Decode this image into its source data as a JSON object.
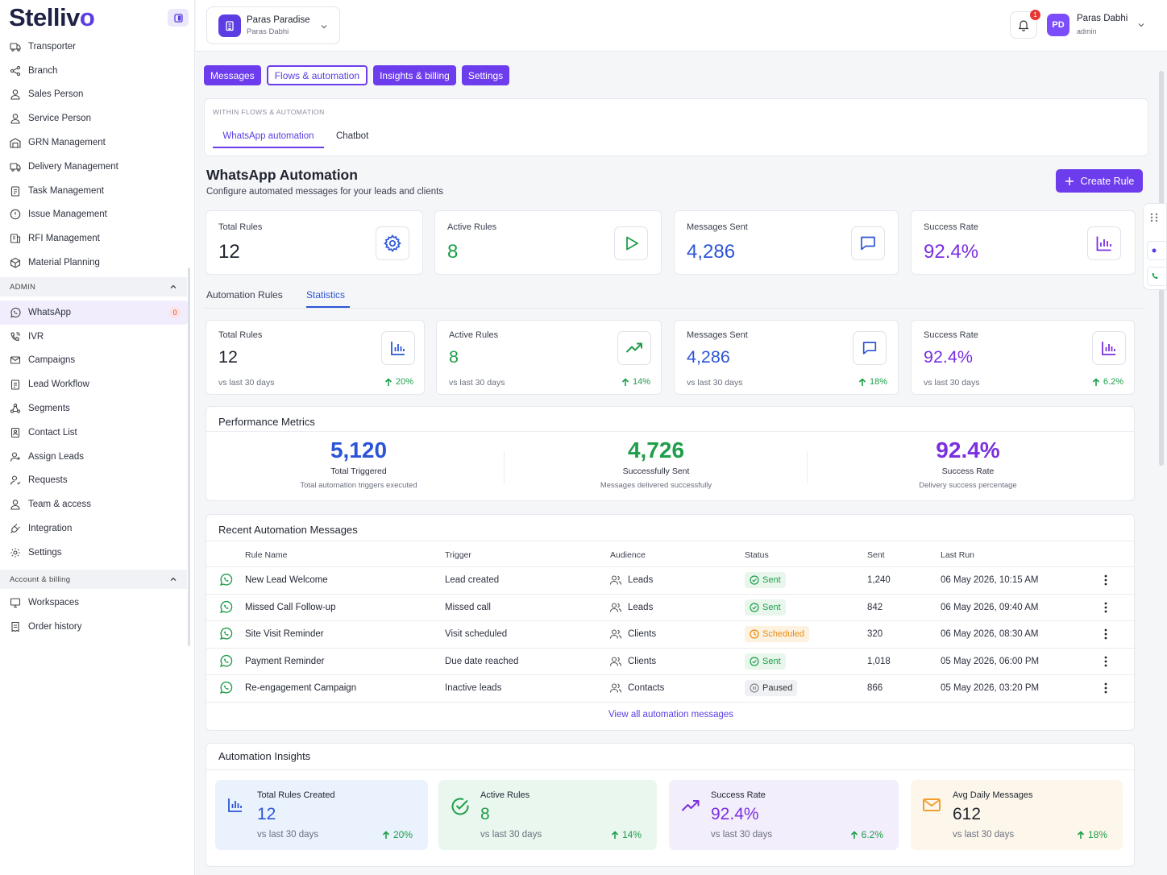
{
  "brand": {
    "name_a": "Stelliv",
    "name_b": "o"
  },
  "sidebar": {
    "items_top": [
      {
        "label": "Transporter"
      },
      {
        "label": "Branch"
      },
      {
        "label": "Sales Person"
      },
      {
        "label": "Service Person"
      },
      {
        "label": "GRN Management"
      },
      {
        "label": "Delivery Management"
      },
      {
        "label": "Task Management"
      },
      {
        "label": "Issue Management"
      },
      {
        "label": "RFI Management"
      },
      {
        "label": "Material Planning"
      }
    ],
    "admin_label": "ADMIN",
    "items_admin": [
      {
        "label": "WhatsApp",
        "badge": "0"
      },
      {
        "label": "IVR"
      },
      {
        "label": "Campaigns"
      },
      {
        "label": "Lead Workflow"
      },
      {
        "label": "Segments"
      },
      {
        "label": "Contact List"
      },
      {
        "label": "Assign Leads"
      },
      {
        "label": "Requests"
      },
      {
        "label": "Team & access"
      },
      {
        "label": "Integration"
      },
      {
        "label": "Settings"
      }
    ],
    "billing_label": "Account & billing",
    "items_billing": [
      {
        "label": "Workspaces"
      },
      {
        "label": "Order history"
      }
    ]
  },
  "topbar": {
    "project_name": "Paras Paradise",
    "project_sub": "Paras Dabhi",
    "notif_count": "1",
    "avatar": "PD",
    "user_name": "Paras Dabhi",
    "user_role": "admin"
  },
  "tabs": [
    "Messages",
    "Flows & automation",
    "Insights & billing",
    "Settings"
  ],
  "subnav": {
    "caption": "WITHIN FLOWS & AUTOMATION",
    "tabs": [
      "WhatsApp automation",
      "Chatbot"
    ]
  },
  "page": {
    "title": "WhatsApp Automation",
    "subtitle": "Configure automated messages for your leads and clients",
    "create_label": "Create Rule"
  },
  "kpis": [
    {
      "label": "Total Rules",
      "value": "12",
      "color": "#1f2430"
    },
    {
      "label": "Active Rules",
      "value": "8",
      "color": "#1e9e4a"
    },
    {
      "label": "Messages Sent",
      "value": "4,286",
      "color": "#2c55d6"
    },
    {
      "label": "Success Rate",
      "value": "92.4%",
      "color": "#7b2fe0"
    }
  ],
  "section_tabs": [
    "Automation Rules",
    "Statistics"
  ],
  "stats": [
    {
      "label": "Total Rules",
      "value": "12",
      "foot": "vs last 30 days",
      "change": "20%",
      "color": "#1f2430"
    },
    {
      "label": "Active Rules",
      "value": "8",
      "foot": "vs last 30 days",
      "change": "14%",
      "color": "#1e9e4a"
    },
    {
      "label": "Messages Sent",
      "value": "4,286",
      "foot": "vs last 30 days",
      "change": "18%",
      "color": "#2c55d6"
    },
    {
      "label": "Success Rate",
      "value": "92.4%",
      "foot": "vs last 30 days",
      "change": "6.2%",
      "color": "#7b2fe0"
    }
  ],
  "performance": {
    "title": "Performance Metrics",
    "cols": [
      {
        "value": "5,120",
        "label": "Total Triggered",
        "sub": "Total automation triggers executed",
        "color": "#2c55d6"
      },
      {
        "value": "4,726",
        "label": "Successfully Sent",
        "sub": "Messages delivered successfully",
        "color": "#1e9e4a"
      },
      {
        "value": "92.4%",
        "label": "Success Rate",
        "sub": "Delivery success percentage",
        "color": "#7b2fe0"
      }
    ]
  },
  "recent": {
    "title": "Recent Automation Messages",
    "headers": [
      "Rule Name",
      "Trigger",
      "Audience",
      "Status",
      "Sent",
      "Last Run"
    ],
    "rows": [
      {
        "name": "New Lead Welcome",
        "trigger": "Lead created",
        "audience": "Leads",
        "status": "Sent",
        "sent": "1,240",
        "last": "06 May 2026, 10:15 AM"
      },
      {
        "name": "Missed Call Follow-up",
        "trigger": "Missed call",
        "audience": "Leads",
        "status": "Sent",
        "sent": "842",
        "last": "06 May 2026, 09:40 AM"
      },
      {
        "name": "Site Visit Reminder",
        "trigger": "Visit scheduled",
        "audience": "Clients",
        "status": "Scheduled",
        "sent": "320",
        "last": "06 May 2026, 08:30 AM"
      },
      {
        "name": "Payment Reminder",
        "trigger": "Due date reached",
        "audience": "Clients",
        "status": "Sent",
        "sent": "1,018",
        "last": "05 May 2026, 06:00 PM"
      },
      {
        "name": "Re-engagement Campaign",
        "trigger": "Inactive leads",
        "audience": "Contacts",
        "status": "Paused",
        "sent": "866",
        "last": "05 May 2026, 03:20 PM"
      }
    ],
    "view_all": "View all automation messages"
  },
  "insights": {
    "title": "Automation Insights",
    "cards": [
      {
        "label": "Total Rules Created",
        "value": "12",
        "foot": "vs last 30 days",
        "change": "20%",
        "color": "#2c55d6",
        "bg": "#eaf2fd"
      },
      {
        "label": "Active Rules",
        "value": "8",
        "foot": "vs last 30 days",
        "change": "14%",
        "color": "#1e9e4a",
        "bg": "#eaf7ee"
      },
      {
        "label": "Success Rate",
        "value": "92.4%",
        "foot": "vs last 30 days",
        "change": "6.2%",
        "color": "#7b2fe0",
        "bg": "#f3eefc"
      },
      {
        "label": "Avg Daily Messages",
        "value": "612",
        "foot": "vs last 30 days",
        "change": "18%",
        "color": "#1f2430",
        "bg": "#fdf6ea"
      }
    ]
  }
}
